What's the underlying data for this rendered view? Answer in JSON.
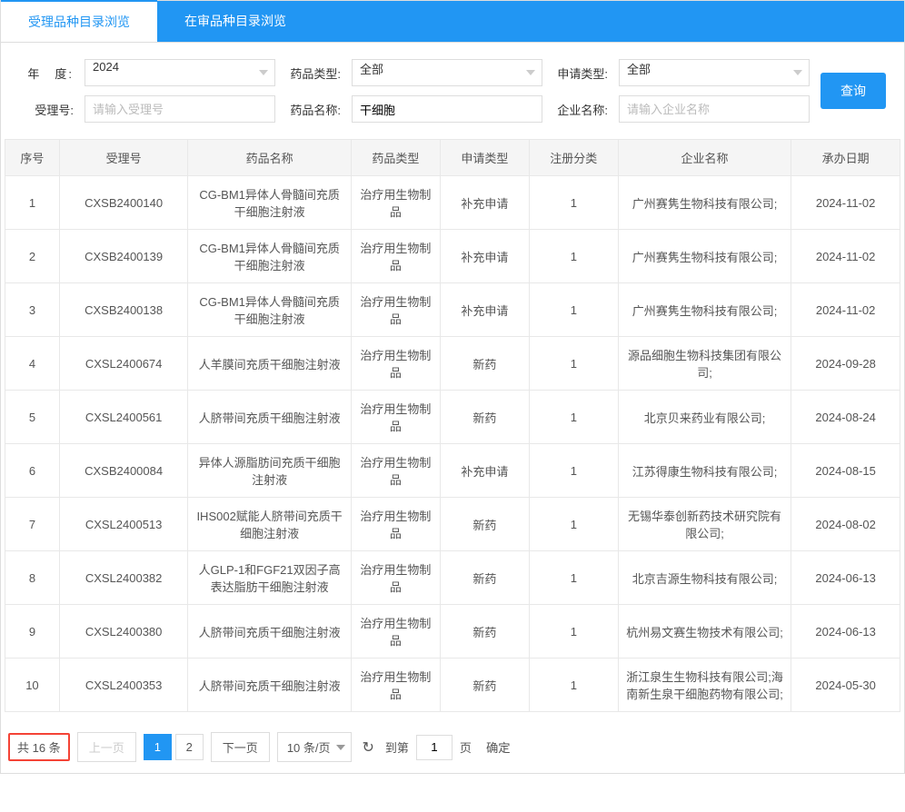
{
  "tabs": {
    "active": "受理品种目录浏览",
    "inactive": "在审品种目录浏览"
  },
  "filters": {
    "year_label": "年　度:",
    "year_value": "2024",
    "drug_type_label": "药品类型:",
    "drug_type_value": "全部",
    "apply_type_label": "申请类型:",
    "apply_type_value": "全部",
    "accept_no_label": "受理号:",
    "accept_no_placeholder": "请输入受理号",
    "drug_name_label": "药品名称:",
    "drug_name_value": "干细胞",
    "company_label": "企业名称:",
    "company_placeholder": "请输入企业名称",
    "query_btn": "查询"
  },
  "table": {
    "headers": {
      "seq": "序号",
      "accept_no": "受理号",
      "drug_name": "药品名称",
      "drug_type": "药品类型",
      "apply_type": "申请类型",
      "reg_class": "注册分类",
      "company": "企业名称",
      "date": "承办日期"
    },
    "rows": [
      {
        "seq": "1",
        "accept_no": "CXSB2400140",
        "drug_name": "CG-BM1异体人骨髓间充质干细胞注射液",
        "drug_type": "治疗用生物制品",
        "apply_type": "补充申请",
        "reg_class": "1",
        "company": "广州赛隽生物科技有限公司;",
        "date": "2024-11-02"
      },
      {
        "seq": "2",
        "accept_no": "CXSB2400139",
        "drug_name": "CG-BM1异体人骨髓间充质干细胞注射液",
        "drug_type": "治疗用生物制品",
        "apply_type": "补充申请",
        "reg_class": "1",
        "company": "广州赛隽生物科技有限公司;",
        "date": "2024-11-02"
      },
      {
        "seq": "3",
        "accept_no": "CXSB2400138",
        "drug_name": "CG-BM1异体人骨髓间充质干细胞注射液",
        "drug_type": "治疗用生物制品",
        "apply_type": "补充申请",
        "reg_class": "1",
        "company": "广州赛隽生物科技有限公司;",
        "date": "2024-11-02"
      },
      {
        "seq": "4",
        "accept_no": "CXSL2400674",
        "drug_name": "人羊膜间充质干细胞注射液",
        "drug_type": "治疗用生物制品",
        "apply_type": "新药",
        "reg_class": "1",
        "company": "源品细胞生物科技集团有限公司;",
        "date": "2024-09-28"
      },
      {
        "seq": "5",
        "accept_no": "CXSL2400561",
        "drug_name": "人脐带间充质干细胞注射液",
        "drug_type": "治疗用生物制品",
        "apply_type": "新药",
        "reg_class": "1",
        "company": "北京贝来药业有限公司;",
        "date": "2024-08-24"
      },
      {
        "seq": "6",
        "accept_no": "CXSB2400084",
        "drug_name": "异体人源脂肪间充质干细胞注射液",
        "drug_type": "治疗用生物制品",
        "apply_type": "补充申请",
        "reg_class": "1",
        "company": "江苏得康生物科技有限公司;",
        "date": "2024-08-15"
      },
      {
        "seq": "7",
        "accept_no": "CXSL2400513",
        "drug_name": "IHS002赋能人脐带间充质干细胞注射液",
        "drug_type": "治疗用生物制品",
        "apply_type": "新药",
        "reg_class": "1",
        "company": "无锡华泰创新药技术研究院有限公司;",
        "date": "2024-08-02"
      },
      {
        "seq": "8",
        "accept_no": "CXSL2400382",
        "drug_name": "人GLP-1和FGF21双因子高表达脂肪干细胞注射液",
        "drug_type": "治疗用生物制品",
        "apply_type": "新药",
        "reg_class": "1",
        "company": "北京吉源生物科技有限公司;",
        "date": "2024-06-13"
      },
      {
        "seq": "9",
        "accept_no": "CXSL2400380",
        "drug_name": "人脐带间充质干细胞注射液",
        "drug_type": "治疗用生物制品",
        "apply_type": "新药",
        "reg_class": "1",
        "company": "杭州易文赛生物技术有限公司;",
        "date": "2024-06-13"
      },
      {
        "seq": "10",
        "accept_no": "CXSL2400353",
        "drug_name": "人脐带间充质干细胞注射液",
        "drug_type": "治疗用生物制品",
        "apply_type": "新药",
        "reg_class": "1",
        "company": "浙江泉生生物科技有限公司;海南新生泉干细胞药物有限公司;",
        "date": "2024-05-30"
      }
    ]
  },
  "pagination": {
    "total_text": "共 16 条",
    "prev": "上一页",
    "pages": [
      "1",
      "2"
    ],
    "current_page": "1",
    "next": "下一页",
    "per_page": "10 条/页",
    "goto_label": "到第",
    "goto_value": "1",
    "page_suffix": "页",
    "confirm": "确定"
  }
}
